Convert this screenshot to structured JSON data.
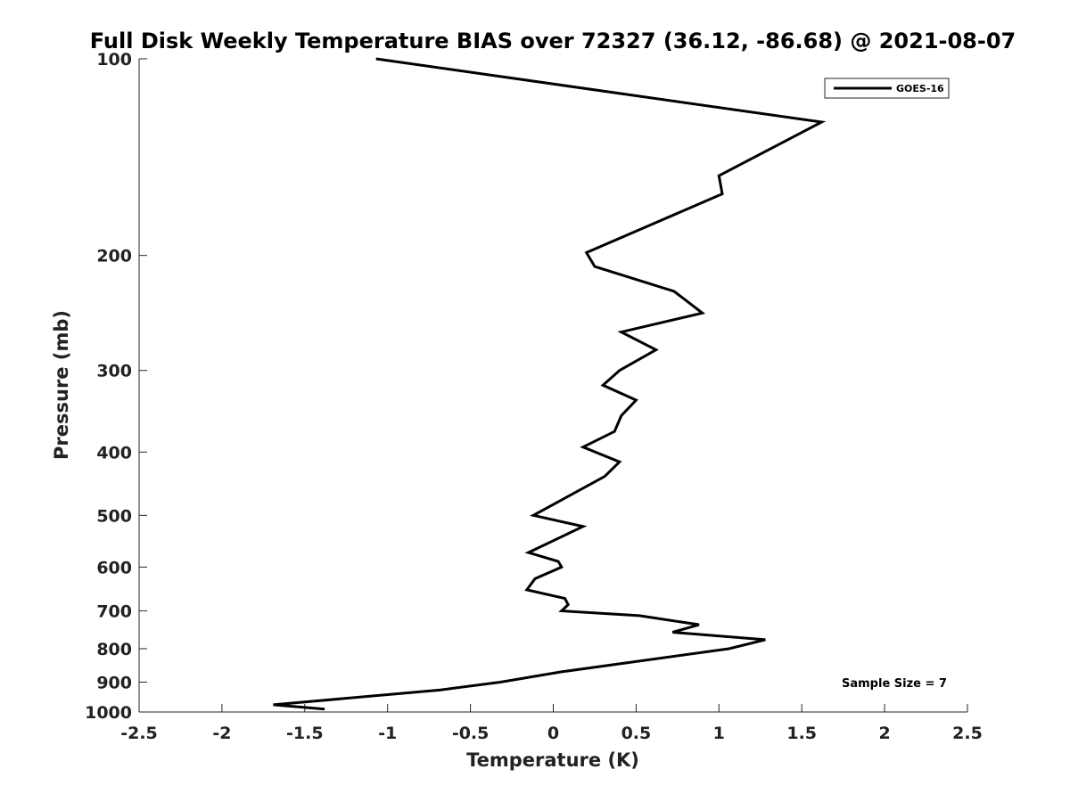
{
  "chart_data": {
    "type": "line",
    "title": "Full Disk Weekly Temperature BIAS over 72327 (36.12, -86.68) @ 2021-08-07",
    "xlabel": "Temperature (K)",
    "ylabel": "Pressure (mb)",
    "xlim": [
      -2.5,
      2.5
    ],
    "ylim": [
      100,
      1000
    ],
    "y_scale": "log",
    "y_reversed": true,
    "grid": false,
    "legend_position": "top-right",
    "x_ticks": [
      -2.5,
      -2,
      -1.5,
      -1,
      -0.5,
      0,
      0.5,
      1,
      1.5,
      2,
      2.5
    ],
    "x_tick_labels": [
      "-2.5",
      "-2",
      "-1.5",
      "-1",
      "-0.5",
      "0",
      "0.5",
      "1",
      "1.5",
      "2",
      "2.5"
    ],
    "y_ticks": [
      100,
      200,
      300,
      400,
      500,
      600,
      700,
      800,
      900,
      1000
    ],
    "y_tick_labels": [
      "100",
      "200",
      "300",
      "400",
      "500",
      "600",
      "700",
      "800",
      "900",
      "1000"
    ],
    "series": [
      {
        "name": "GOES-16",
        "color": "#000000",
        "points": [
          {
            "x": -1.07,
            "p": 100
          },
          {
            "x": 1.62,
            "p": 125
          },
          {
            "x": 1.0,
            "p": 151
          },
          {
            "x": 1.02,
            "p": 161
          },
          {
            "x": 0.2,
            "p": 198
          },
          {
            "x": 0.25,
            "p": 208
          },
          {
            "x": 0.73,
            "p": 227
          },
          {
            "x": 0.9,
            "p": 245
          },
          {
            "x": 0.41,
            "p": 262
          },
          {
            "x": 0.62,
            "p": 279
          },
          {
            "x": 0.4,
            "p": 300
          },
          {
            "x": 0.3,
            "p": 316
          },
          {
            "x": 0.5,
            "p": 333
          },
          {
            "x": 0.41,
            "p": 352
          },
          {
            "x": 0.37,
            "p": 372
          },
          {
            "x": 0.18,
            "p": 393
          },
          {
            "x": 0.4,
            "p": 414
          },
          {
            "x": 0.31,
            "p": 436
          },
          {
            "x": -0.12,
            "p": 500
          },
          {
            "x": 0.18,
            "p": 520
          },
          {
            "x": -0.15,
            "p": 570
          },
          {
            "x": 0.03,
            "p": 588
          },
          {
            "x": 0.05,
            "p": 600
          },
          {
            "x": -0.11,
            "p": 625
          },
          {
            "x": -0.16,
            "p": 650
          },
          {
            "x": 0.07,
            "p": 670
          },
          {
            "x": 0.09,
            "p": 685
          },
          {
            "x": 0.05,
            "p": 700
          },
          {
            "x": 0.52,
            "p": 712
          },
          {
            "x": 0.88,
            "p": 735
          },
          {
            "x": 0.72,
            "p": 755
          },
          {
            "x": 1.28,
            "p": 775
          },
          {
            "x": 1.06,
            "p": 800
          },
          {
            "x": 0.05,
            "p": 868
          },
          {
            "x": -0.32,
            "p": 900
          },
          {
            "x": -0.68,
            "p": 925
          },
          {
            "x": -1.69,
            "p": 975
          },
          {
            "x": -1.38,
            "p": 990
          }
        ]
      }
    ],
    "annotations": [
      {
        "text": "Sample Size = 7",
        "position": "bottom-right"
      }
    ]
  }
}
